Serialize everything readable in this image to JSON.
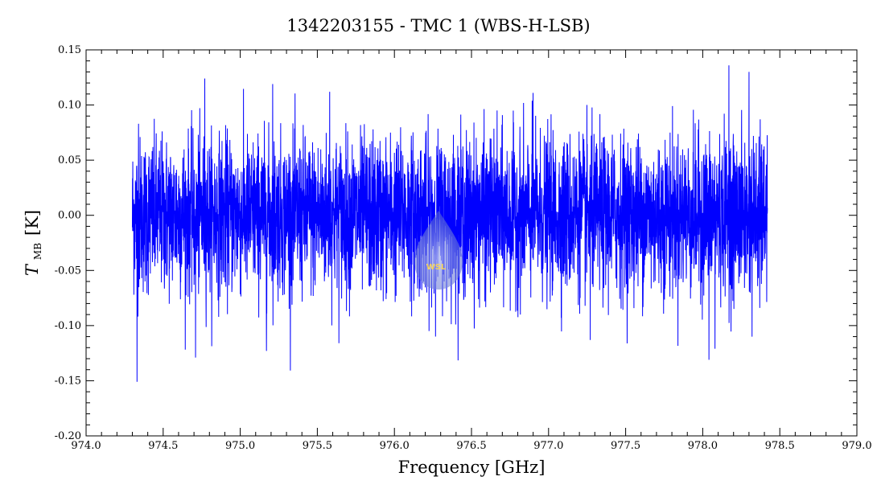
{
  "chart_data": {
    "type": "line",
    "title": "1342203155 - TMC 1 (WBS-H-LSB)",
    "xlabel": "Frequency [GHz]",
    "ylabel": {
      "main": "T",
      "subscript": "MB",
      "unit": "[K]"
    },
    "xlim": [
      974.0,
      979.0
    ],
    "ylim": [
      -0.2,
      0.15
    ],
    "x_ticks": [
      "974.0",
      "974.5",
      "975.0",
      "975.5",
      "976.0",
      "976.5",
      "977.0",
      "977.5",
      "978.0",
      "978.5",
      "979.0"
    ],
    "y_ticks": [
      "0.15",
      "0.10",
      "0.05",
      "0.00",
      "-0.05",
      "-0.10",
      "-0.15",
      "-0.20"
    ],
    "grid": false,
    "series": [
      {
        "color": "#0000ff",
        "x_range": [
          974.3,
          978.42
        ],
        "noise_rms_K": 0.035,
        "baseline_K": 0.0,
        "highlights": [
          {
            "x": 974.33,
            "y": -0.151
          },
          {
            "x": 974.34,
            "y": 0.083
          },
          {
            "x": 974.77,
            "y": 0.124
          },
          {
            "x": 974.71,
            "y": -0.129
          },
          {
            "x": 975.17,
            "y": -0.123
          },
          {
            "x": 975.21,
            "y": 0.119
          },
          {
            "x": 975.58,
            "y": 0.112
          },
          {
            "x": 975.64,
            "y": -0.116
          },
          {
            "x": 976.21,
            "y": -0.07
          },
          {
            "x": 976.9,
            "y": 0.111
          },
          {
            "x": 977.27,
            "y": -0.113
          },
          {
            "x": 978.04,
            "y": -0.131
          },
          {
            "x": 978.08,
            "y": -0.121
          },
          {
            "x": 978.17,
            "y": 0.136
          },
          {
            "x": 978.3,
            "y": 0.13
          },
          {
            "x": 978.32,
            "y": -0.11
          },
          {
            "x": 978.37,
            "y": -0.084
          }
        ]
      }
    ]
  },
  "watermark": {
    "text": "WSL",
    "color": "#6f7fd6"
  }
}
